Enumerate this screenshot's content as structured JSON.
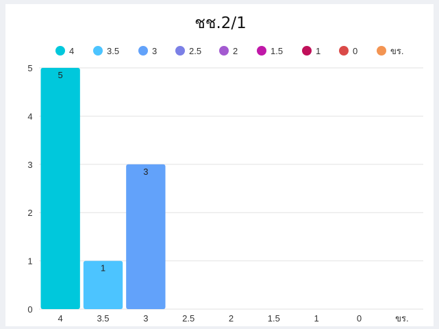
{
  "chart_data": {
    "type": "bar",
    "title": "ชช.2/1",
    "categories": [
      "4",
      "3.5",
      "3",
      "2.5",
      "2",
      "1.5",
      "1",
      "0",
      "ขร."
    ],
    "values": [
      5,
      1,
      3,
      0,
      0,
      0,
      0,
      0,
      0
    ],
    "colors": [
      "#00c8dc",
      "#4cc4ff",
      "#62a2fa",
      "#7b80e6",
      "#a35ad0",
      "#c018a8",
      "#c0105a",
      "#da4a48",
      "#f39452"
    ],
    "legend": [
      "4",
      "3.5",
      "3",
      "2.5",
      "2",
      "1.5",
      "1",
      "0",
      "ขร."
    ],
    "legend_position": "top",
    "ylim": [
      0,
      5
    ],
    "yticks": [
      "0",
      "1",
      "2",
      "3",
      "4",
      "5"
    ],
    "grid": true,
    "data_labels": true
  }
}
